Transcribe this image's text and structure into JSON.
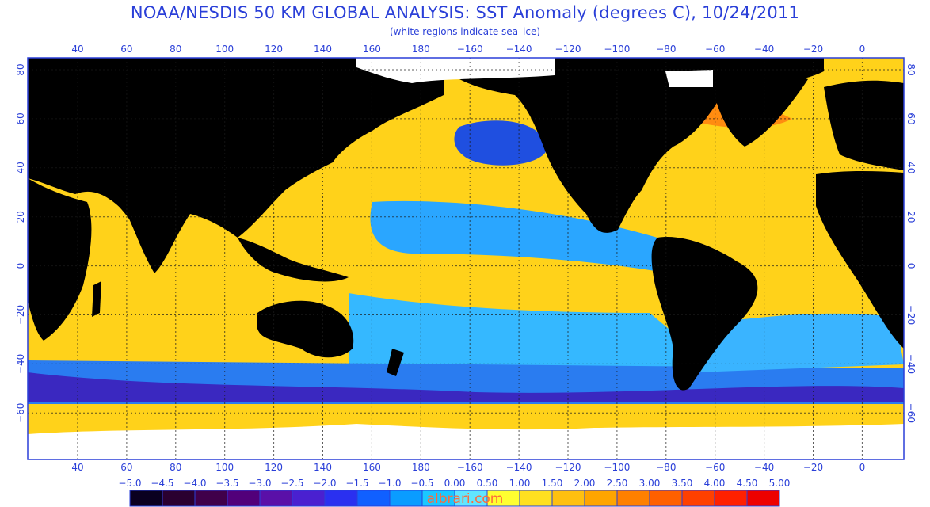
{
  "header": {
    "title": "NOAA/NESDIS 50 KM GLOBAL ANALYSIS: SST Anomaly (degrees C), 10/24/2011",
    "subtitle": "(white regions indicate sea–ice)"
  },
  "map": {
    "lon_ticks": [
      "40",
      "60",
      "80",
      "100",
      "120",
      "140",
      "160",
      "180",
      "−160",
      "−140",
      "−120",
      "−100",
      "−80",
      "−60",
      "−40",
      "−20",
      "0"
    ],
    "lat_ticks": [
      "80",
      "60",
      "40",
      "20",
      "0",
      "−20",
      "−40",
      "−60"
    ],
    "land_color": "#000000",
    "ice_color": "#ffffff",
    "frame_color": "#2a3fd8"
  },
  "colorbar": {
    "labels": [
      "−5.0",
      "−4.5",
      "−4.0",
      "−3.5",
      "−3.0",
      "−2.5",
      "−2.0",
      "−1.5",
      "−1.0",
      "−0.5",
      "0.00",
      "0.50",
      "1.00",
      "1.50",
      "2.00",
      "2.50",
      "3.00",
      "3.50",
      "4.00",
      "4.50",
      "5.00"
    ],
    "colors": [
      "#0a0020",
      "#2a0030",
      "#40004a",
      "#52007a",
      "#5a10a8",
      "#4a20d0",
      "#2a30f0",
      "#1060ff",
      "#0a9cff",
      "#1ac8ff",
      "#60e6ff",
      "#ffff30",
      "#ffe020",
      "#ffc010",
      "#ffa500",
      "#ff8000",
      "#ff6000",
      "#ff4000",
      "#ff2000",
      "#ee0000"
    ]
  },
  "watermark": "albrari.com"
}
